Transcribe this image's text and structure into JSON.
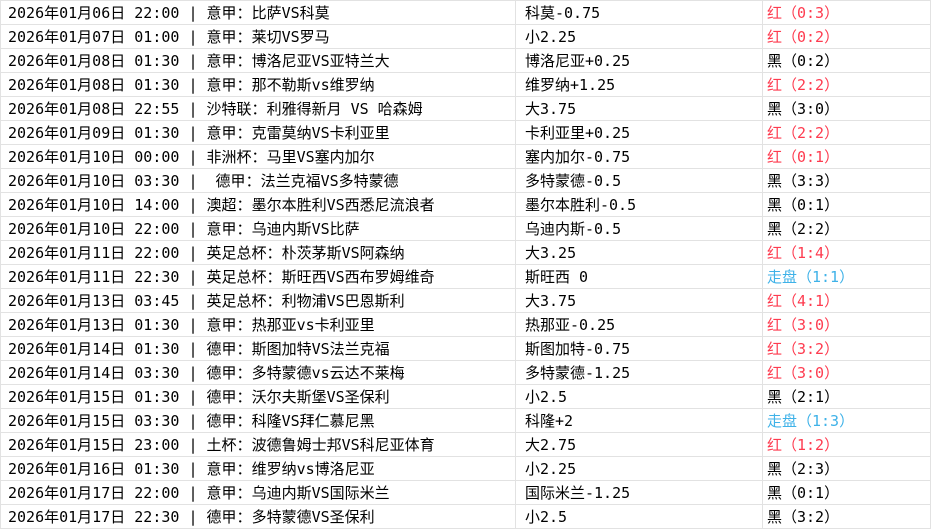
{
  "colors": {
    "red": "#fe3b4f",
    "push_blue": "#3fb2e8",
    "black": "#000000",
    "grid": "#e2e2e2",
    "background": "#ffffff"
  },
  "table": {
    "separator": " | ",
    "colon": "：",
    "columns": [
      "match_info",
      "handicap",
      "result"
    ],
    "rows": [
      {
        "datetime": "2026年01月06日 22:00",
        "league": "意甲",
        "match": "比萨VS科莫",
        "handicap": "科莫-0.75",
        "result": "红（0:3）",
        "result_type": "red"
      },
      {
        "datetime": "2026年01月07日 01:00",
        "league": "意甲",
        "match": "莱切VS罗马",
        "handicap": "小2.25",
        "result": "红（0:2）",
        "result_type": "red"
      },
      {
        "datetime": "2026年01月08日 01:30",
        "league": "意甲",
        "match": "博洛尼亚VS亚特兰大",
        "handicap": "博洛尼亚+0.25",
        "result": "黑（0:2）",
        "result_type": "black"
      },
      {
        "datetime": "2026年01月08日 01:30",
        "league": "意甲",
        "match": "那不勒斯vs维罗纳",
        "handicap": "维罗纳+1.25",
        "result": "红（2:2）",
        "result_type": "red"
      },
      {
        "datetime": "2026年01月08日 22:55",
        "league": "沙特联",
        "match": "利雅得新月 VS 哈森姆",
        "handicap": "大3.75",
        "result": "黑（3:0）",
        "result_type": "black"
      },
      {
        "datetime": "2026年01月09日 01:30",
        "league": "意甲",
        "match": "克雷莫纳VS卡利亚里",
        "handicap": "卡利亚里+0.25",
        "result": "红（2:2）",
        "result_type": "red"
      },
      {
        "datetime": "2026年01月10日 00:00",
        "league": "非洲杯",
        "match": "马里VS塞内加尔",
        "handicap": "塞内加尔-0.75",
        "result": "红（0:1）",
        "result_type": "red"
      },
      {
        "datetime": "2026年01月10日 03:30",
        "league": " 德甲",
        "match": "法兰克福VS多特蒙德",
        "handicap": "多特蒙德-0.5",
        "result": "黑（3:3）",
        "result_type": "black"
      },
      {
        "datetime": "2026年01月10日 14:00",
        "league": "澳超",
        "match": "墨尔本胜利VS西悉尼流浪者",
        "handicap": "墨尔本胜利-0.5",
        "result": "黑（0:1）",
        "result_type": "black"
      },
      {
        "datetime": "2026年01月10日 22:00",
        "league": "意甲",
        "match": "乌迪内斯VS比萨",
        "handicap": "乌迪内斯-0.5",
        "result": "黑（2:2）",
        "result_type": "black"
      },
      {
        "datetime": "2026年01月11日 22:00",
        "league": "英足总杯",
        "match": "朴茨茅斯VS阿森纳",
        "handicap": "大3.25",
        "result": "红（1:4）",
        "result_type": "red"
      },
      {
        "datetime": "2026年01月11日 22:30",
        "league": "英足总杯",
        "match": "斯旺西VS西布罗姆维奇",
        "handicap": "斯旺西 0",
        "result": "走盘（1:1）",
        "result_type": "push"
      },
      {
        "datetime": "2026年01月13日 03:45",
        "league": "英足总杯",
        "match": "利物浦VS巴恩斯利",
        "handicap": "大3.75",
        "result": "红（4:1）",
        "result_type": "red"
      },
      {
        "datetime": "2026年01月13日 01:30",
        "league": "意甲",
        "match": "热那亚vs卡利亚里",
        "handicap": "热那亚-0.25",
        "result": "红（3:0）",
        "result_type": "red"
      },
      {
        "datetime": "2026年01月14日 01:30",
        "league": "德甲",
        "match": "斯图加特VS法兰克福",
        "handicap": "斯图加特-0.75",
        "result": "红（3:2）",
        "result_type": "red"
      },
      {
        "datetime": "2026年01月14日 03:30",
        "league": "德甲",
        "match": "多特蒙德vs云达不莱梅",
        "handicap": "多特蒙德-1.25",
        "result": "红（3:0）",
        "result_type": "red"
      },
      {
        "datetime": "2026年01月15日 01:30",
        "league": "德甲",
        "match": "沃尔夫斯堡VS圣保利",
        "handicap": "小2.5",
        "result": "黑（2:1）",
        "result_type": "black"
      },
      {
        "datetime": "2026年01月15日 03:30",
        "league": "德甲",
        "match": "科隆VS拜仁慕尼黑",
        "handicap": "科隆+2",
        "result": "走盘（1:3）",
        "result_type": "push"
      },
      {
        "datetime": "2026年01月15日 23:00",
        "league": "土杯",
        "match": "波德鲁姆士邦VS科尼亚体育",
        "handicap": "大2.75",
        "result": "红（1:2）",
        "result_type": "red"
      },
      {
        "datetime": "2026年01月16日 01:30",
        "league": "意甲",
        "match": "维罗纳vs博洛尼亚",
        "handicap": "小2.25",
        "result": "黑（2:3）",
        "result_type": "black"
      },
      {
        "datetime": "2026年01月17日 22:00",
        "league": "意甲",
        "match": "乌迪内斯VS国际米兰",
        "handicap": "国际米兰-1.25",
        "result": "黑（0:1）",
        "result_type": "black"
      },
      {
        "datetime": "2026年01月17日 22:30",
        "league": "德甲",
        "match": "多特蒙德VS圣保利",
        "handicap": "小2.5",
        "result": "黑（3:2）",
        "result_type": "black"
      }
    ]
  }
}
